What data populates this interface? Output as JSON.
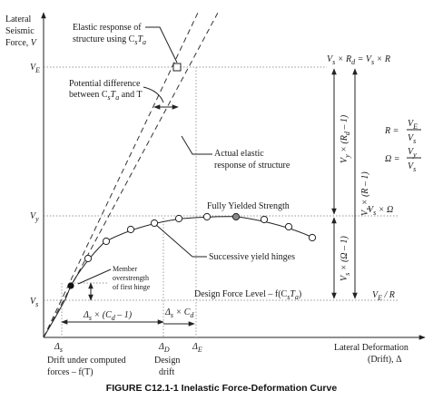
{
  "axes": {
    "y_title_1": "Lateral",
    "y_title_2": "Seismic",
    "y_title_3": "Force,",
    "y_title_var": "V",
    "x_title_1": "Lateral Deformation",
    "x_title_2": "(Drift), Δ"
  },
  "y_ticks": {
    "ve": "V",
    "ve_sub": "E",
    "vy": "V",
    "vy_sub": "y",
    "vs": "V",
    "vs_sub": "s"
  },
  "x_ticks": {
    "delta_s": "Δ",
    "delta_s_sub": "s",
    "delta_d": "Δ",
    "delta_d_sub": "D",
    "delta_e": "Δ",
    "delta_e_sub": "E"
  },
  "annotations": {
    "elastic_response_1": "Elastic response of",
    "elastic_response_2": "structure using C",
    "elastic_response_2_sub": "s",
    "elastic_response_2_var": "T",
    "elastic_response_2_var_sub": "a",
    "potential_diff_1": "Potential difference",
    "potential_diff_2": "between C",
    "potential_diff_2_sub": "s",
    "potential_diff_2_mid": "T",
    "potential_diff_2_mid_sub": "a",
    "potential_diff_2_end": " and T",
    "actual_elastic_1": "Actual elastic",
    "actual_elastic_2": "response of structure",
    "fully_yielded": "Fully Yielded Strength",
    "yield_hinges": "Successive yield hinges",
    "member_1": "Member",
    "member_2": "overstrength",
    "member_3": "of first hinge",
    "design_force": "Design Force Level – f(C",
    "design_force_sub": "s",
    "design_force_var": "T",
    "design_force_var_sub": "a",
    "design_force_end": ")",
    "drift_computed_1": "Drift under computed",
    "drift_computed_2": "forces – f(T)",
    "design_drift_1": "Design",
    "design_drift_2": "drift",
    "delta_s_cd": "Δ",
    "delta_s_cd_sub": "s",
    "delta_s_cd_rest": " × (C",
    "delta_s_cd_rest_sub": "d",
    "delta_s_cd_end": " – 1)",
    "delta_cd": "Δ",
    "delta_cd_sub": "s",
    "delta_cd_mid": " × C",
    "delta_cd_mid_sub": "d"
  },
  "right_labels": {
    "top_v": "V",
    "top_vs_sub": "s",
    "top_x": " × R",
    "top_rd_sub": "d",
    "top_eq": " = V",
    "top_eq_sub": "s",
    "top_r": " × R",
    "omega_label": "V",
    "omega_label_sub": "s",
    "omega_label_end": " × Ω",
    "ve_r": "V",
    "ve_r_sub": "E",
    "ve_r_end": " / R"
  },
  "vertical_labels": {
    "rd": "V",
    "rd_sub": "y",
    "rd_rest": " × (R",
    "rd_rest_sub": "d",
    "rd_end": " – 1)",
    "r": "V",
    "r_sub": "s",
    "r_end": " × (R – 1)",
    "omega": "V",
    "omega_sub": "s",
    "omega_end": " × (Ω – 1)"
  },
  "formulas": {
    "r_lhs": "R =",
    "r_num": "V",
    "r_num_sub": "E",
    "r_den": "V",
    "r_den_sub": "s",
    "om_lhs": "Ω =",
    "om_num": "V",
    "om_num_sub": "y",
    "om_den": "V",
    "om_den_sub": "s"
  },
  "caption": "FIGURE C12.1-1  Inelastic Force-Deformation Curve"
}
